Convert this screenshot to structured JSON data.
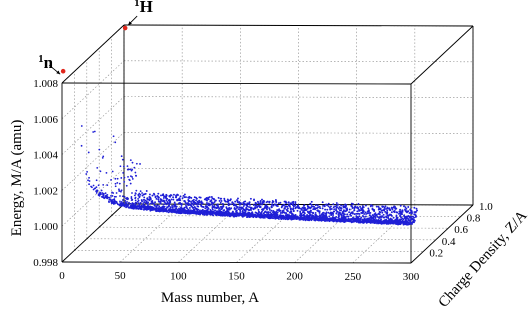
{
  "chart_data": {
    "type": "scatter",
    "projection": "3d",
    "xlabel": "Mass number, A",
    "ylabel": "Charge Density, Z/A",
    "zlabel": "Energy, M/A (amu)",
    "xlim": [
      0,
      300
    ],
    "ylim": [
      0,
      1.0
    ],
    "zlim": [
      0.998,
      1.008
    ],
    "x_ticks": [
      "0",
      "50",
      "100",
      "150",
      "200",
      "250",
      "300"
    ],
    "y_ticks": [
      "0.2",
      "0.4",
      "0.6",
      "0.8",
      "1.0"
    ],
    "z_ticks": [
      "0.998",
      "1.000",
      "1.002",
      "1.004",
      "1.006",
      "1.008"
    ],
    "grid": true,
    "series": [
      {
        "name": "",
        "color": "#1f1fd6",
        "description_points": [
          {
            "A": 2,
            "ZA": 0.5,
            "MA": 1.007
          },
          {
            "A": 3,
            "ZA": 0.33,
            "MA": 1.0054
          },
          {
            "A": 4,
            "ZA": 0.5,
            "MA": 1.0007
          },
          {
            "A": 12,
            "ZA": 0.5,
            "MA": 1.0
          },
          {
            "A": 16,
            "ZA": 0.5,
            "MA": 0.9997
          },
          {
            "A": 56,
            "ZA": 0.46,
            "MA": 0.9994
          },
          {
            "A": 120,
            "ZA": 0.42,
            "MA": 0.9995
          },
          {
            "A": 208,
            "ZA": 0.39,
            "MA": 0.9997
          },
          {
            "A": 238,
            "ZA": 0.39,
            "MA": 1.0002
          },
          {
            "A": 290,
            "ZA": 0.4,
            "MA": 1.0005
          }
        ]
      }
    ],
    "annotations": [
      {
        "label": "H",
        "superscript": "1",
        "A": 1,
        "ZA": 1.0,
        "MA": 1.00783,
        "color": "#e0261b"
      },
      {
        "label": "n",
        "superscript": "1",
        "A": 1,
        "ZA": 0.0,
        "MA": 1.00866,
        "color": "#e0261b"
      }
    ]
  }
}
